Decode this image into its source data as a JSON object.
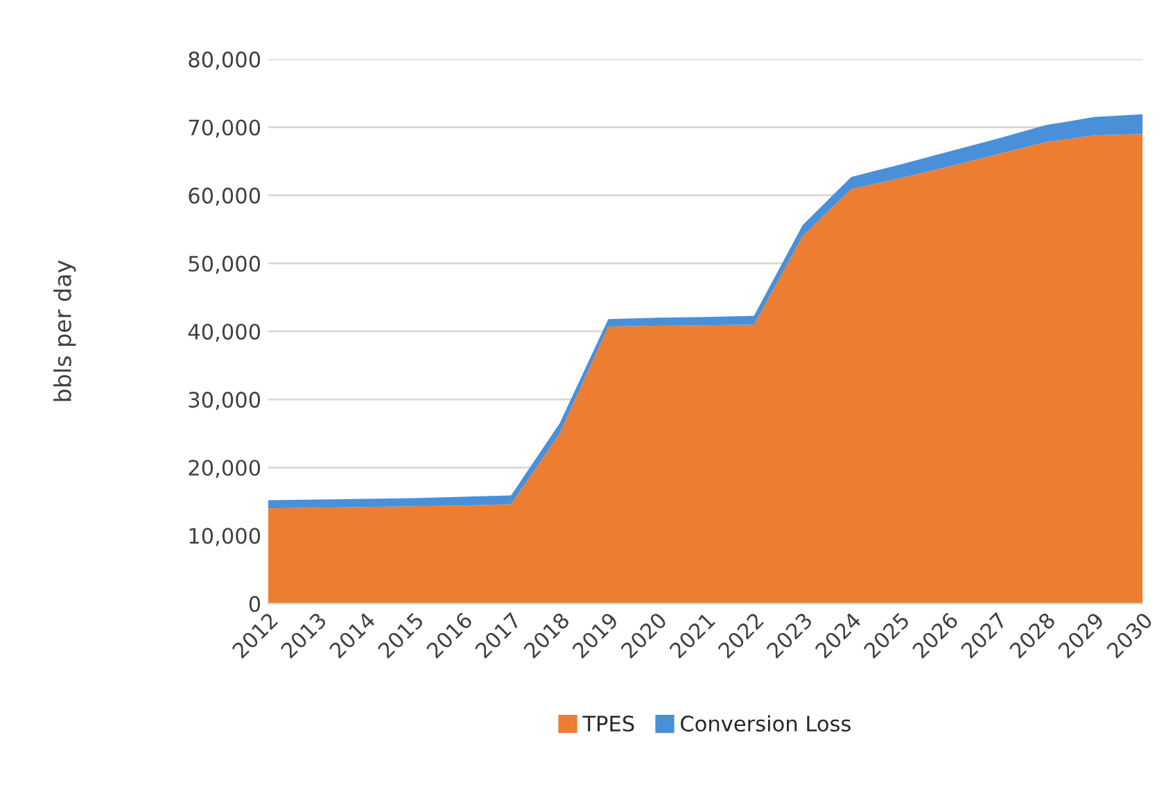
{
  "chart_data": {
    "type": "area",
    "stacked": true,
    "ylabel": "bbls per day",
    "categories": [
      "2012",
      "2013",
      "2014",
      "2015",
      "2016",
      "2017",
      "2018",
      "2019",
      "2020",
      "2021",
      "2022",
      "2023",
      "2024",
      "2025",
      "2026",
      "2027",
      "2028",
      "2029",
      "2030"
    ],
    "series": [
      {
        "name": "TPES",
        "color": "#ed7d31",
        "values": [
          14000,
          14100,
          14200,
          14300,
          14400,
          14600,
          25000,
          40700,
          40800,
          40900,
          41000,
          54000,
          60900,
          62500,
          64200,
          66000,
          67800,
          68800,
          69000
        ]
      },
      {
        "name": "Conversion Loss",
        "color": "#4a90d9",
        "values": [
          1200,
          1200,
          1200,
          1200,
          1300,
          1300,
          1500,
          1100,
          1200,
          1200,
          1300,
          1600,
          1800,
          2000,
          2200,
          2300,
          2500,
          2700,
          2900
        ]
      }
    ],
    "ylim": [
      0,
      80000
    ],
    "yticks": [
      {
        "value": 0,
        "label": "0"
      },
      {
        "value": 10000,
        "label": "10,000"
      },
      {
        "value": 20000,
        "label": "20,000"
      },
      {
        "value": 30000,
        "label": "30,000"
      },
      {
        "value": 40000,
        "label": "40,000"
      },
      {
        "value": 50000,
        "label": "50,000"
      },
      {
        "value": 60000,
        "label": "60,000"
      },
      {
        "value": 70000,
        "label": "70,000"
      },
      {
        "value": 80000,
        "label": "80,000"
      }
    ],
    "grid": "y",
    "legend": "bottom"
  }
}
